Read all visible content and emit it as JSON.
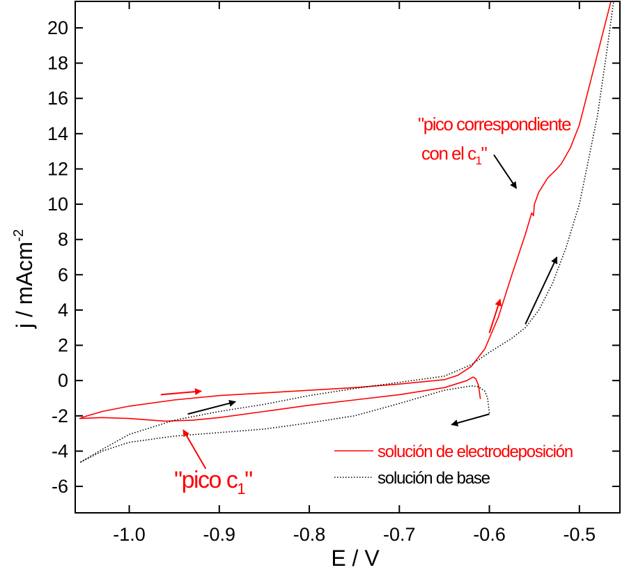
{
  "chart_data": {
    "type": "line",
    "xlabel": "E / V",
    "ylabel": "j / mAcm",
    "ylabel_sup": "-2",
    "xlim": [
      -1.06,
      -0.455
    ],
    "ylim": [
      -7.5,
      21.5
    ],
    "x_ticks": [
      -1.0,
      -0.9,
      -0.8,
      -0.7,
      -0.6,
      -0.5
    ],
    "x_tick_labels": [
      "-1.0",
      "-0.9",
      "-0.8",
      "-0.7",
      "-0.6",
      "-0.5"
    ],
    "y_ticks": [
      -6,
      -4,
      -2,
      0,
      2,
      4,
      6,
      8,
      10,
      12,
      14,
      16,
      18,
      20
    ],
    "y_tick_labels": [
      "-6",
      "-4",
      "-2",
      "0",
      "2",
      "4",
      "6",
      "8",
      "10",
      "12",
      "14",
      "16",
      "18",
      "20"
    ],
    "grid": false,
    "legend_position": "bottom-right",
    "series": [
      {
        "name": "solución de electrodeposición",
        "color": "#ff0000",
        "style": "solid",
        "points": [
          [
            -0.61,
            -1.05
          ],
          [
            -0.612,
            -0.3
          ],
          [
            -0.615,
            0.1
          ],
          [
            -0.618,
            0.2
          ],
          [
            -0.625,
            0.0
          ],
          [
            -0.65,
            -0.4
          ],
          [
            -0.7,
            -0.8
          ],
          [
            -0.75,
            -1.1
          ],
          [
            -0.8,
            -1.4
          ],
          [
            -0.85,
            -1.75
          ],
          [
            -0.9,
            -2.1
          ],
          [
            -0.93,
            -2.25
          ],
          [
            -0.96,
            -2.3
          ],
          [
            -1.0,
            -2.15
          ],
          [
            -1.03,
            -2.1
          ],
          [
            -1.055,
            -2.15
          ],
          [
            -1.05,
            -2.05
          ],
          [
            -1.03,
            -1.75
          ],
          [
            -1.0,
            -1.45
          ],
          [
            -0.95,
            -1.1
          ],
          [
            -0.9,
            -0.85
          ],
          [
            -0.85,
            -0.7
          ],
          [
            -0.8,
            -0.55
          ],
          [
            -0.75,
            -0.4
          ],
          [
            -0.7,
            -0.2
          ],
          [
            -0.65,
            0.05
          ],
          [
            -0.635,
            0.3
          ],
          [
            -0.62,
            0.8
          ],
          [
            -0.605,
            1.8
          ],
          [
            -0.59,
            3.6
          ],
          [
            -0.575,
            6.0
          ],
          [
            -0.56,
            8.3
          ],
          [
            -0.553,
            9.5
          ],
          [
            -0.551,
            9.35
          ],
          [
            -0.55,
            10.0
          ],
          [
            -0.545,
            10.7
          ],
          [
            -0.535,
            11.5
          ],
          [
            -0.525,
            12.0
          ],
          [
            -0.52,
            12.3
          ],
          [
            -0.51,
            13.2
          ],
          [
            -0.5,
            14.5
          ],
          [
            -0.49,
            16.5
          ],
          [
            -0.48,
            18.5
          ],
          [
            -0.47,
            20.5
          ],
          [
            -0.465,
            21.5
          ]
        ]
      },
      {
        "name": "solución de base",
        "color": "#000000",
        "style": "dotted",
        "points": [
          [
            -0.6,
            -1.85
          ],
          [
            -0.602,
            -1.0
          ],
          [
            -0.605,
            -0.6
          ],
          [
            -0.612,
            -0.35
          ],
          [
            -0.62,
            -0.3
          ],
          [
            -0.65,
            -0.55
          ],
          [
            -0.7,
            -1.3
          ],
          [
            -0.75,
            -2.0
          ],
          [
            -0.8,
            -2.4
          ],
          [
            -0.85,
            -2.75
          ],
          [
            -0.9,
            -2.95
          ],
          [
            -0.95,
            -3.15
          ],
          [
            -1.0,
            -3.5
          ],
          [
            -1.03,
            -4.0
          ],
          [
            -1.055,
            -4.65
          ],
          [
            -1.03,
            -3.9
          ],
          [
            -1.0,
            -3.05
          ],
          [
            -0.95,
            -2.25
          ],
          [
            -0.9,
            -1.75
          ],
          [
            -0.85,
            -1.35
          ],
          [
            -0.8,
            -0.85
          ],
          [
            -0.75,
            -0.45
          ],
          [
            -0.7,
            -0.1
          ],
          [
            -0.65,
            0.25
          ],
          [
            -0.62,
            0.9
          ],
          [
            -0.6,
            1.6
          ],
          [
            -0.575,
            2.4
          ],
          [
            -0.56,
            3.0
          ],
          [
            -0.545,
            4.0
          ],
          [
            -0.53,
            5.5
          ],
          [
            -0.515,
            7.5
          ],
          [
            -0.5,
            10.0
          ],
          [
            -0.49,
            12.5
          ],
          [
            -0.48,
            15.0
          ],
          [
            -0.47,
            18.5
          ],
          [
            -0.462,
            21.5
          ]
        ]
      }
    ],
    "arrows": [
      {
        "color": "#ff0000",
        "from": [
          -0.965,
          -0.8
        ],
        "to": [
          -0.92,
          -0.6
        ]
      },
      {
        "color": "#000000",
        "from": [
          -0.935,
          -1.9
        ],
        "to": [
          -0.882,
          -1.2
        ]
      },
      {
        "color": "#000000",
        "from": [
          -0.6,
          -1.9
        ],
        "to": [
          -0.642,
          -2.5
        ]
      },
      {
        "color": "#ff0000",
        "from": [
          -0.6,
          2.7
        ],
        "to": [
          -0.588,
          4.6
        ]
      },
      {
        "color": "#000000",
        "from": [
          -0.56,
          3.2
        ],
        "to": [
          -0.525,
          7.0
        ]
      },
      {
        "color": "#000000",
        "from": [
          -0.595,
          12.8
        ],
        "to": [
          -0.57,
          10.9
        ]
      },
      {
        "color": "#ff0000",
        "from": [
          -0.915,
          -5.0
        ],
        "to": [
          -0.94,
          -2.8
        ]
      }
    ],
    "annotations": [
      {
        "id": "pico-correspondiente",
        "color": "#ff0000",
        "lines": [
          "\"pico correspondiente",
          "con el c"
        ],
        "subscript": "1",
        "closing": "\""
      },
      {
        "id": "pico-c1",
        "color": "#ff0000",
        "text": "\"pico c",
        "subscript": "1",
        "closing": "\""
      }
    ]
  }
}
